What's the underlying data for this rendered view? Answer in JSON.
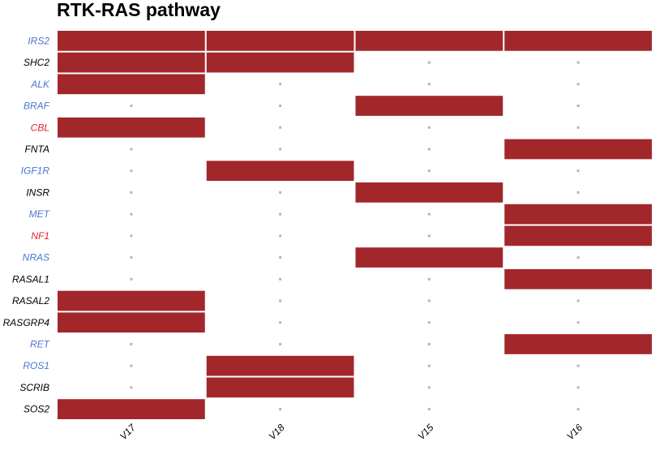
{
  "chart_data": {
    "type": "heatmap",
    "title": "RTK-RAS pathway",
    "columns": [
      "V17",
      "V18",
      "V15",
      "V16"
    ],
    "rows": [
      {
        "gene": "IRS2",
        "color": "#4a77cf",
        "values": [
          1,
          1,
          1,
          1
        ]
      },
      {
        "gene": "SHC2",
        "color": "#000000",
        "values": [
          1,
          1,
          0,
          0
        ]
      },
      {
        "gene": "ALK",
        "color": "#4a77cf",
        "values": [
          1,
          0,
          0,
          0
        ]
      },
      {
        "gene": "BRAF",
        "color": "#4a77cf",
        "values": [
          0,
          0,
          1,
          0
        ]
      },
      {
        "gene": "CBL",
        "color": "#e8222c",
        "values": [
          1,
          0,
          0,
          0
        ]
      },
      {
        "gene": "FNTA",
        "color": "#000000",
        "values": [
          0,
          0,
          0,
          1
        ]
      },
      {
        "gene": "IGF1R",
        "color": "#4a77cf",
        "values": [
          0,
          1,
          0,
          0
        ]
      },
      {
        "gene": "INSR",
        "color": "#000000",
        "values": [
          0,
          0,
          1,
          0
        ]
      },
      {
        "gene": "MET",
        "color": "#4a77cf",
        "values": [
          0,
          0,
          0,
          1
        ]
      },
      {
        "gene": "NF1",
        "color": "#e8222c",
        "values": [
          0,
          0,
          0,
          1
        ]
      },
      {
        "gene": "NRAS",
        "color": "#4a77cf",
        "values": [
          0,
          0,
          1,
          0
        ]
      },
      {
        "gene": "RASAL1",
        "color": "#000000",
        "values": [
          0,
          0,
          0,
          1
        ]
      },
      {
        "gene": "RASAL2",
        "color": "#000000",
        "values": [
          1,
          0,
          0,
          0
        ]
      },
      {
        "gene": "RASGRP4",
        "color": "#000000",
        "values": [
          1,
          0,
          0,
          0
        ]
      },
      {
        "gene": "RET",
        "color": "#4a77cf",
        "values": [
          0,
          0,
          0,
          1
        ]
      },
      {
        "gene": "ROS1",
        "color": "#4a77cf",
        "values": [
          0,
          1,
          0,
          0
        ]
      },
      {
        "gene": "SCRIB",
        "color": "#000000",
        "values": [
          0,
          1,
          0,
          0
        ]
      },
      {
        "gene": "SOS2",
        "color": "#000000",
        "values": [
          1,
          0,
          0,
          0
        ]
      }
    ],
    "fill_color": "#a2272b",
    "empty_marker_color": "#b3b3b3",
    "grid": false,
    "legend": "none"
  }
}
